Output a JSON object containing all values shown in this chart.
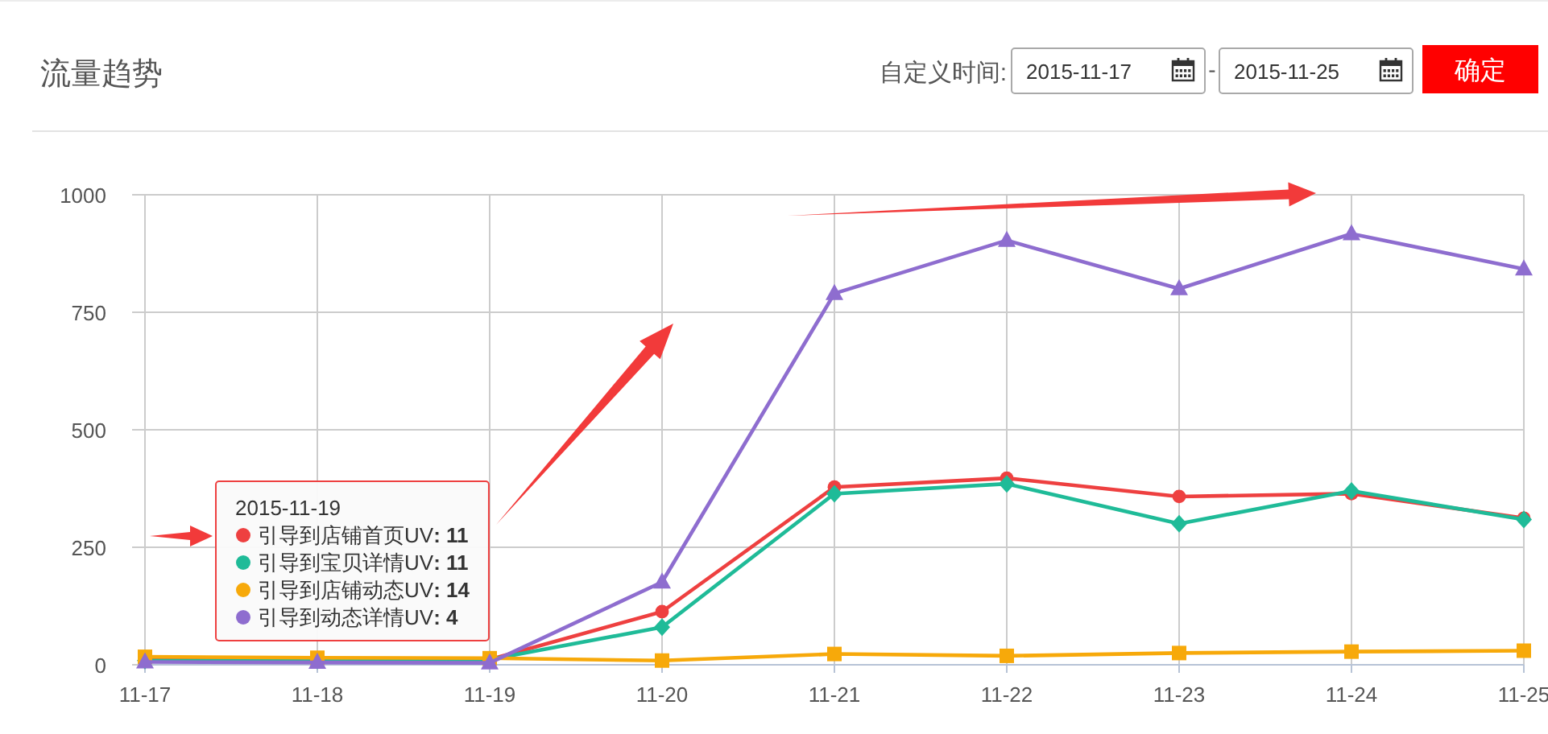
{
  "chart_data": {
    "type": "line",
    "title": "流量趋势",
    "annotations": [
      "自定义时间:",
      "2015-11-17",
      "-",
      "2015-11-25",
      "确定",
      ": 11",
      ": 11",
      ": 14",
      ": 4"
    ],
    "categories": [
      "11-17",
      "11-18",
      "11-19",
      "11-20",
      "11-21",
      "11-22",
      "11-23",
      "11-24",
      "11-25"
    ],
    "ylim": [
      0,
      1000
    ],
    "yticks": [
      0,
      250,
      500,
      750,
      1000
    ],
    "grid": true,
    "legend": "bottom left",
    "legend_title": "2015-11-19",
    "series": [
      {
        "name": "引导到店铺首页UV",
        "color": "#ee4040",
        "marker": "circle",
        "values": [
          10,
          10,
          11,
          113,
          378,
          397,
          358,
          364,
          312
        ]
      },
      {
        "name": "引导到宝贝详情UV",
        "color": "#1fbb98",
        "marker": "diamond",
        "values": [
          9,
          9,
          11,
          80,
          364,
          385,
          300,
          370,
          309
        ]
      },
      {
        "name": "引导到店铺动态UV",
        "color": "#f7a90a",
        "marker": "square",
        "values": [
          17,
          15,
          14,
          9,
          23,
          19,
          25,
          28,
          30
        ]
      },
      {
        "name": "引导到动态详情UV",
        "color": "#8e6dcf",
        "marker": "triangle",
        "values": [
          6,
          5,
          4,
          176,
          790,
          903,
          800,
          917,
          842
        ]
      }
    ]
  }
}
